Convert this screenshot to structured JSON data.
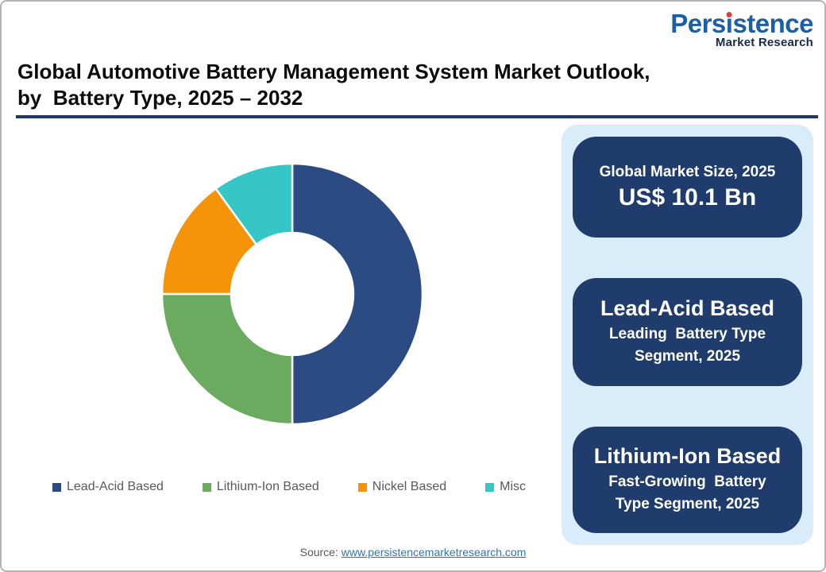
{
  "logo": {
    "name": "Persistence",
    "name_parts": {
      "pre": "Pers",
      "i": "ı",
      "post": "stence"
    },
    "tagline": "Market Research",
    "brand_blue": "#1c5fa5",
    "brand_navy": "#16294e",
    "dot_red": "#e0393b"
  },
  "title": {
    "line1": "Global Automotive Battery Management System Market Outlook,",
    "line2": "by  Battery Type, 2025 – 2032",
    "rule_color": "#1f3864"
  },
  "chart_data": {
    "type": "pie",
    "variant": "donut",
    "categories": [
      "Lead-Acid Based",
      "Lithium-Ion Based",
      "Nickel Based",
      "Misc"
    ],
    "values": [
      50,
      25,
      15,
      10
    ],
    "colors": [
      "#2c4b82",
      "#6aab5f",
      "#f59408",
      "#36c6c5"
    ],
    "legend_position": "bottom",
    "legend_text_color": "#595959",
    "start_angle_deg": 0,
    "direction": "clockwise",
    "donut_hole_ratio": 0.47
  },
  "panel": {
    "panel_bg": "#d9ecf9",
    "card_bg": "#1f3c6d",
    "market_size": {
      "heading": "Global Market Size, 2025",
      "value": "US$ 10.1 Bn"
    },
    "leading": {
      "title": "Lead-Acid Based",
      "subtitle": "Leading  Battery Type\nSegment, 2025"
    },
    "fast_growing": {
      "title": "Lithium-Ion Based",
      "subtitle": "Fast-Growing  Battery\nType Segment, 2025"
    }
  },
  "source": {
    "label": "Source:",
    "url": "www.persistencemarketresearch.com"
  }
}
